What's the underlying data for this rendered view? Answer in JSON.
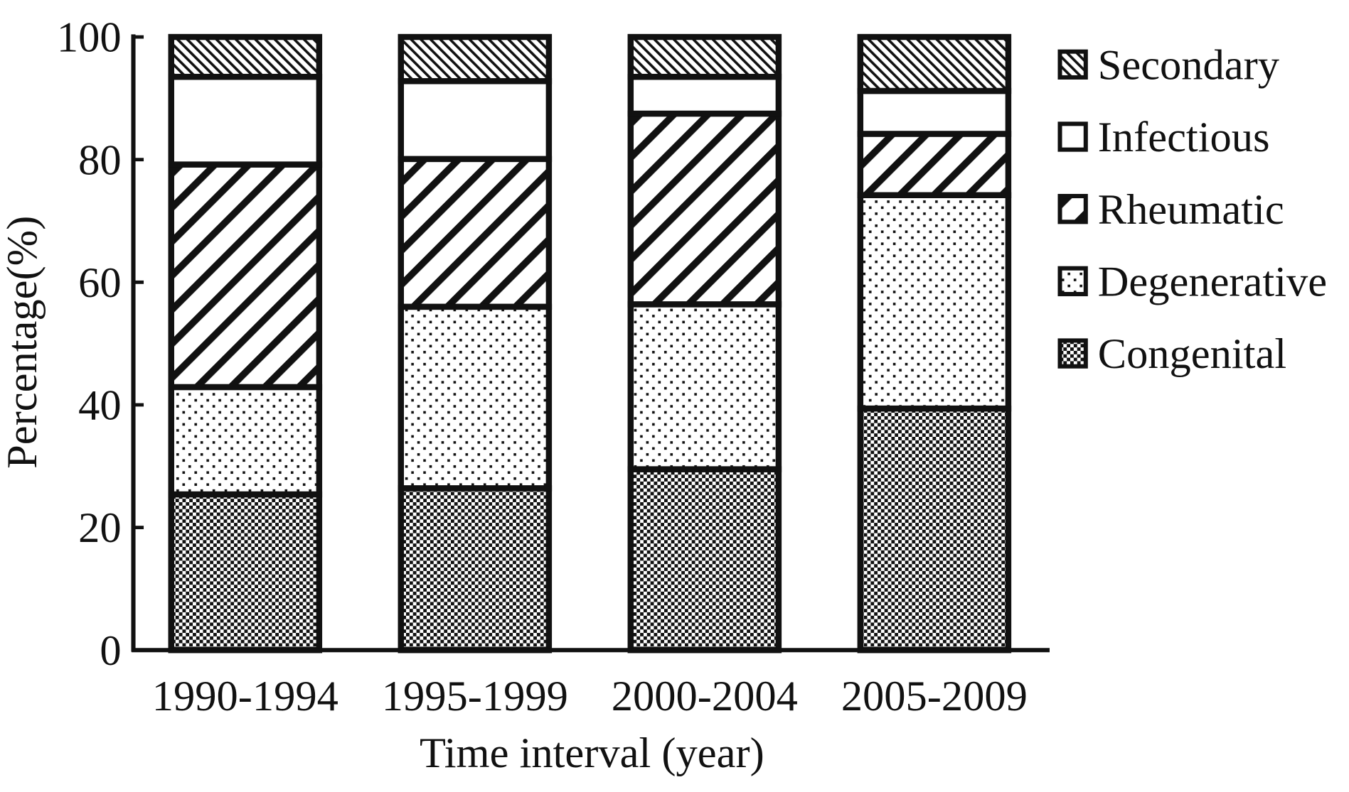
{
  "chart_data": {
    "type": "bar",
    "stacked": true,
    "title": "",
    "xlabel": "Time interval (year)",
    "ylabel": "Percentage(%)",
    "ylim": [
      0,
      100
    ],
    "yticks": [
      "0",
      "20",
      "40",
      "60",
      "80",
      "100"
    ],
    "categories": [
      "1990-1994",
      "1995-1999",
      "2000-2004",
      "2005-2009"
    ],
    "series": [
      {
        "name": "Congenital",
        "pattern": "checker",
        "values": [
          25.4,
          26.4,
          29.5,
          39.4
        ]
      },
      {
        "name": "Degenerative",
        "pattern": "dots",
        "values": [
          17.5,
          29.6,
          26.9,
          34.8
        ]
      },
      {
        "name": "Rheumatic",
        "pattern": "wide-diagonal",
        "values": [
          36.3,
          24.1,
          31.1,
          10.0
        ]
      },
      {
        "name": "Infectious",
        "pattern": "blank",
        "values": [
          14.3,
          12.7,
          6.0,
          7.0
        ]
      },
      {
        "name": "Secondary",
        "pattern": "fine-diagonal",
        "values": [
          6.5,
          7.2,
          6.5,
          8.8
        ]
      }
    ],
    "legend_order": [
      "Secondary",
      "Infectious",
      "Rheumatic",
      "Degenerative",
      "Congenital"
    ],
    "legend_position": "right",
    "grid": false,
    "colors": {
      "ink": "#111111",
      "background": "#ffffff"
    }
  }
}
